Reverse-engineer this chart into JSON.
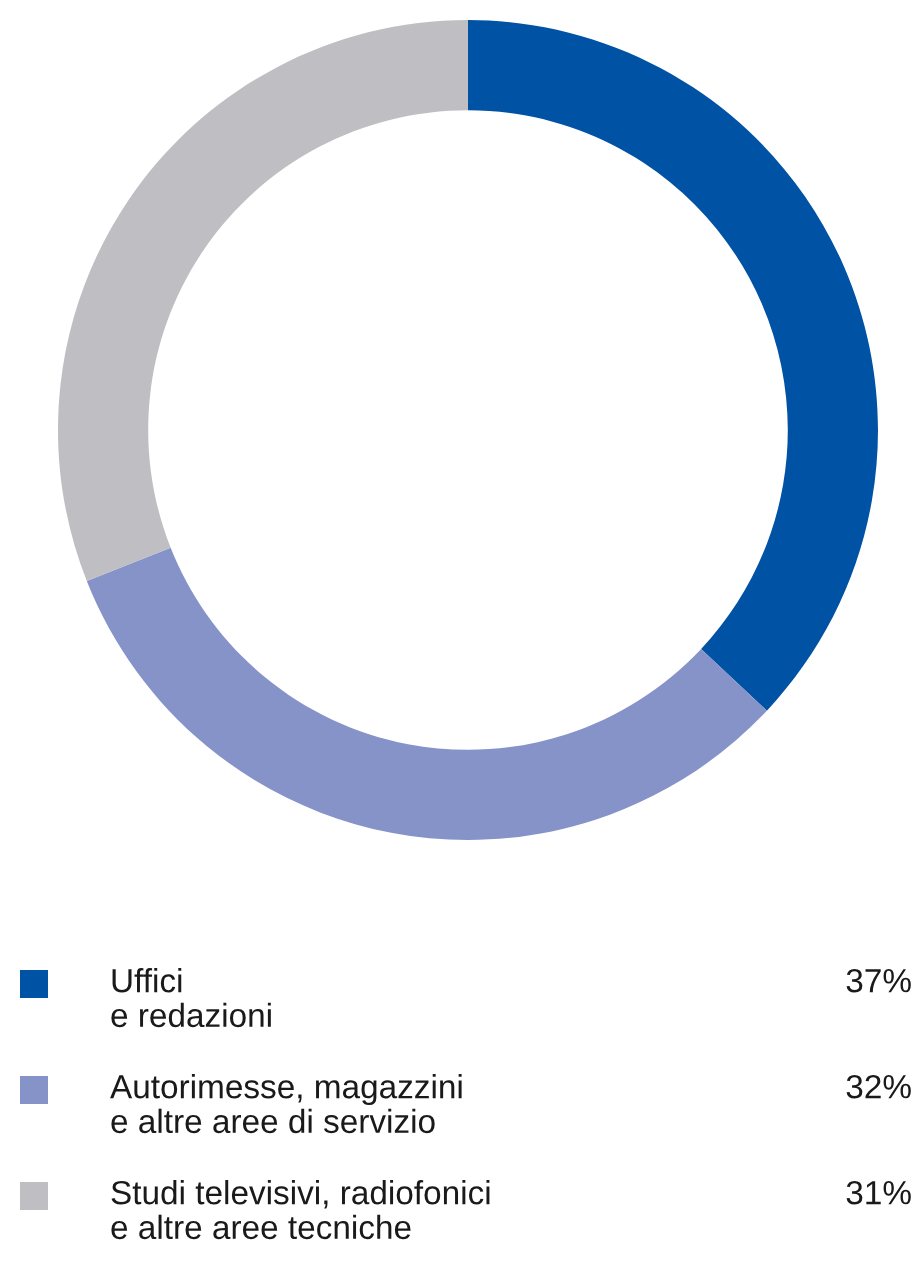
{
  "chart_data": {
    "type": "donut",
    "categories": [
      "Uffici\ne redazioni",
      "Autorimesse, magazzini\ne altre aree di servizio",
      "Studi televisivi, radiofonici\ne altre aree tecniche"
    ],
    "values": [
      37,
      32,
      31
    ],
    "colors": [
      "#0052a5",
      "#8593c9",
      "#bfbfc3"
    ],
    "value_labels": [
      "37%",
      "32%",
      "31%"
    ],
    "legend": "bottom"
  }
}
